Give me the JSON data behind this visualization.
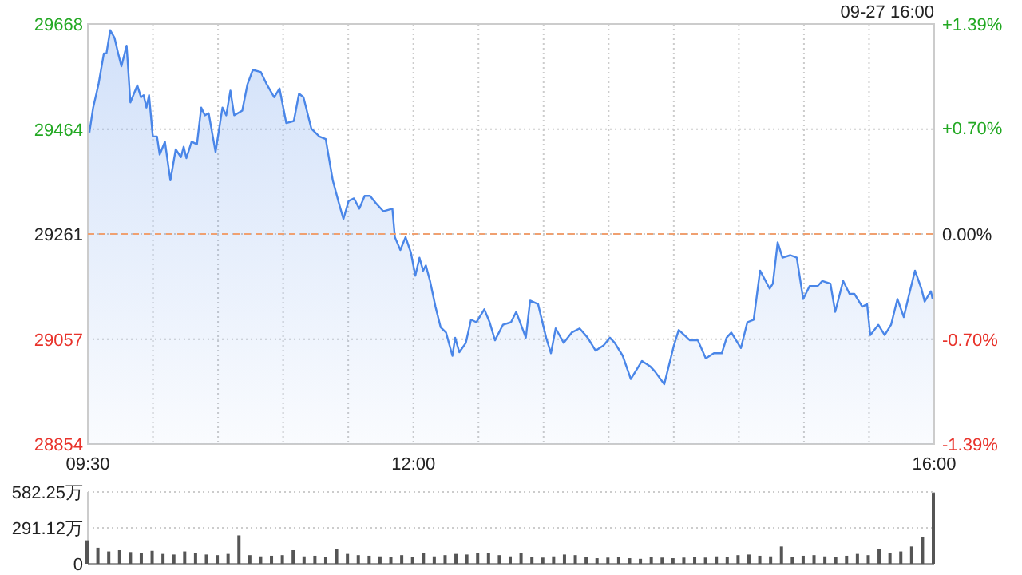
{
  "chart_data": [
    {
      "type": "area",
      "annotations": [
        "09-27 16:00"
      ],
      "xlim": [
        9.5,
        16
      ],
      "xticks": [
        {
          "value": 9.5,
          "label": "09:30"
        },
        {
          "value": 10,
          "label": null
        },
        {
          "value": 10.5,
          "label": null
        },
        {
          "value": 11,
          "label": null
        },
        {
          "value": 11.5,
          "label": null
        },
        {
          "value": 12,
          "label": "12:00"
        },
        {
          "value": 12.5,
          "label": null
        },
        {
          "value": 13,
          "label": null
        },
        {
          "value": 13.5,
          "label": null
        },
        {
          "value": 14,
          "label": null
        },
        {
          "value": 14.5,
          "label": null
        },
        {
          "value": 15,
          "label": null
        },
        {
          "value": 15.5,
          "label": null
        },
        {
          "value": 16,
          "label": "16:00"
        }
      ],
      "ylim": [
        28854,
        29668
      ],
      "yticks": [
        28854,
        29057,
        29261,
        29464,
        29668
      ],
      "y2lim": [
        -1.39,
        1.39
      ],
      "y2ticks": [
        {
          "value": -1.39,
          "label": "-1.39%"
        },
        {
          "value": -0.7,
          "label": "-0.70%"
        },
        {
          "value": 0,
          "label": "0.00%"
        },
        {
          "value": 0.7,
          "label": "+0.70%"
        },
        {
          "value": 1.39,
          "label": "+1.39%"
        }
      ],
      "grid": true,
      "ref_lines": [
        {
          "axis": "y",
          "value": 29261,
          "color": "#f0a070",
          "line_style": "dashed"
        }
      ],
      "series": [
        {
          "color": "#4a86e8",
          "x": [
            9.512,
            9.541,
            9.582,
            9.623,
            9.643,
            9.672,
            9.705,
            9.733,
            9.758,
            9.798,
            9.827,
            9.88,
            9.908,
            9.929,
            9.95,
            9.97,
            9.999,
            10.031,
            10.052,
            10.092,
            10.134,
            10.175,
            10.215,
            10.236,
            10.257,
            10.297,
            10.338,
            10.371,
            10.399,
            10.428,
            10.481,
            10.534,
            10.563,
            10.595,
            10.624,
            10.686,
            10.726,
            10.767,
            10.828,
            10.87,
            10.931,
            10.972,
            11.024,
            11.082,
            11.122,
            11.156,
            11.217,
            11.278,
            11.327,
            11.381,
            11.429,
            11.463,
            11.503,
            11.544,
            11.585,
            11.626,
            11.667,
            11.708,
            11.769,
            11.839,
            11.858,
            11.9,
            11.94,
            11.981,
            12.015,
            12.047,
            12.075,
            12.096,
            12.128,
            12.17,
            12.21,
            12.251,
            12.3,
            12.321,
            12.353,
            12.403,
            12.443,
            12.484,
            12.545,
            12.586,
            12.627,
            12.688,
            12.75,
            12.79,
            12.864,
            12.897,
            12.958,
            13.02,
            13.057,
            13.093,
            13.155,
            13.216,
            13.277,
            13.339,
            13.4,
            13.461,
            13.51,
            13.547,
            13.608,
            13.67,
            13.707,
            13.756,
            13.817,
            13.854,
            13.927,
            14.001,
            14.038,
            14.124,
            14.185,
            14.246,
            14.308,
            14.369,
            14.406,
            14.442,
            14.516,
            14.565,
            14.614,
            14.663,
            14.737,
            14.761,
            14.798,
            14.835,
            14.896,
            14.945,
            14.994,
            15.043,
            15.105,
            15.141,
            15.203,
            15.24,
            15.301,
            15.35,
            15.387,
            15.448,
            15.485,
            15.509,
            15.571,
            15.62,
            15.669,
            15.718,
            15.767,
            15.804,
            15.853,
            15.902,
            15.927,
            15.975,
            15.988
          ],
          "values": [
            29458,
            29506,
            29551,
            29611,
            29611,
            29656,
            29641,
            29611,
            29586,
            29626,
            29516,
            29549,
            29526,
            29530,
            29506,
            29530,
            29450,
            29450,
            29415,
            29440,
            29365,
            29425,
            29410,
            29430,
            29408,
            29440,
            29435,
            29506,
            29491,
            29495,
            29420,
            29506,
            29491,
            29539,
            29491,
            29500,
            29551,
            29579,
            29575,
            29553,
            29526,
            29543,
            29476,
            29480,
            29533,
            29526,
            29465,
            29450,
            29445,
            29365,
            29320,
            29290,
            29325,
            29330,
            29310,
            29335,
            29335,
            29322,
            29305,
            29310,
            29255,
            29230,
            29255,
            29225,
            29180,
            29215,
            29190,
            29200,
            29170,
            29120,
            29080,
            29070,
            29025,
            29060,
            29032,
            29050,
            29095,
            29090,
            29115,
            29090,
            29055,
            29085,
            29090,
            29110,
            29060,
            29132,
            29125,
            29060,
            29030,
            29078,
            29050,
            29070,
            29078,
            29060,
            29035,
            29045,
            29060,
            29050,
            29025,
            28980,
            28995,
            29015,
            29005,
            28995,
            28970,
            29045,
            29075,
            29055,
            29055,
            29020,
            29030,
            29030,
            29060,
            29070,
            29040,
            29090,
            29095,
            29190,
            29155,
            29165,
            29245,
            29215,
            29220,
            29215,
            29135,
            29160,
            29160,
            29170,
            29165,
            29110,
            29170,
            29145,
            29145,
            29120,
            29125,
            29065,
            29085,
            29065,
            29085,
            29135,
            29100,
            29140,
            29190,
            29155,
            29130,
            29150,
            29135
          ]
        }
      ]
    },
    {
      "type": "bar",
      "xlim": [
        9.5,
        16
      ],
      "ylim": [
        0,
        582.25
      ],
      "yticks": [
        0,
        {
          "value": 291.12,
          "label": "291.12万"
        },
        {
          "value": 582.25,
          "label": "582.25万"
        }
      ],
      "grid": "y",
      "tick_labels": "y",
      "color": "#555555",
      "x": [
        9.5,
        9.5833,
        9.6667,
        9.75,
        9.8333,
        9.9167,
        10,
        10.0833,
        10.1667,
        10.25,
        10.3333,
        10.4167,
        10.5,
        10.5833,
        10.6667,
        10.75,
        10.8333,
        10.9167,
        11,
        11.0833,
        11.1667,
        11.25,
        11.3333,
        11.4167,
        11.5,
        11.5833,
        11.6667,
        11.75,
        11.8333,
        11.9167,
        12,
        12.0833,
        12.1667,
        12.25,
        12.3333,
        12.4167,
        12.5,
        12.5833,
        12.6667,
        12.75,
        12.8333,
        12.9167,
        13,
        13.0833,
        13.1667,
        13.25,
        13.3333,
        13.4167,
        13.5,
        13.5833,
        13.6667,
        13.75,
        13.8333,
        13.9167,
        14,
        14.0833,
        14.1667,
        14.25,
        14.3333,
        14.4167,
        14.5,
        14.5833,
        14.6667,
        14.75,
        14.8333,
        14.9167,
        15,
        15.0833,
        15.1667,
        15.25,
        15.3333,
        15.4167,
        15.5,
        15.5833,
        15.6667,
        15.75,
        15.8333,
        15.9167,
        16
      ],
      "values": [
        190,
        130,
        100,
        110,
        95,
        90,
        105,
        80,
        75,
        100,
        85,
        75,
        70,
        80,
        230,
        70,
        60,
        65,
        70,
        110,
        60,
        65,
        55,
        120,
        80,
        70,
        65,
        60,
        55,
        70,
        55,
        85,
        60,
        70,
        80,
        75,
        85,
        90,
        70,
        60,
        85,
        55,
        50,
        60,
        75,
        70,
        55,
        45,
        50,
        55,
        45,
        40,
        55,
        50,
        45,
        50,
        55,
        50,
        60,
        55,
        70,
        75,
        65,
        60,
        140,
        55,
        65,
        70,
        60,
        55,
        65,
        80,
        70,
        120,
        85,
        100,
        140,
        220,
        575
      ]
    }
  ]
}
